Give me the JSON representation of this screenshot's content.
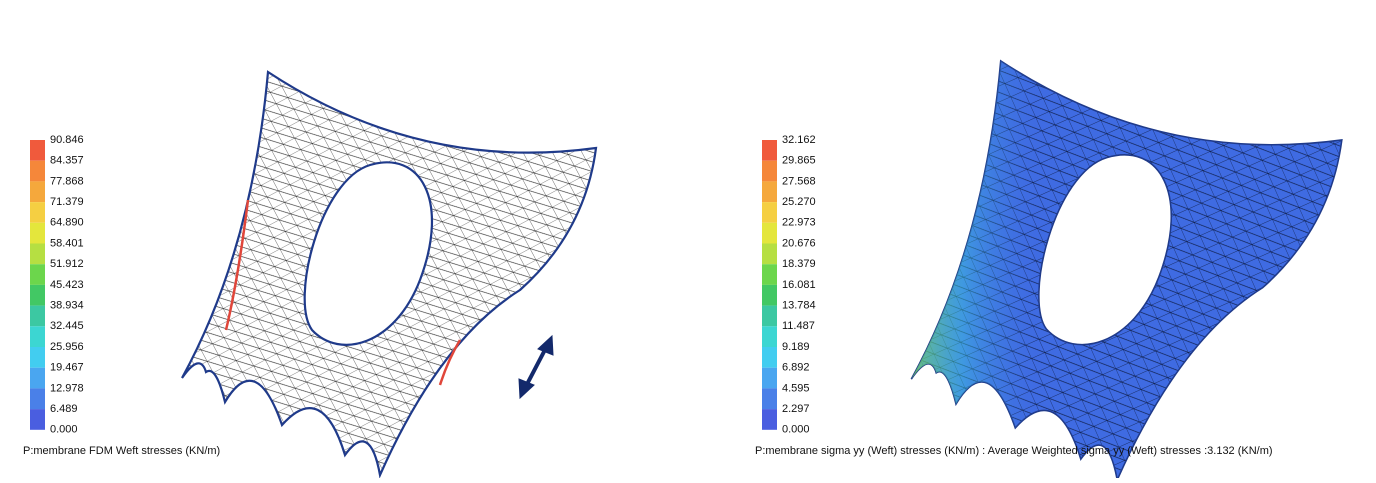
{
  "panels": [
    {
      "legend": [
        "90.846",
        "84.357",
        "77.868",
        "71.379",
        "64.890",
        "58.401",
        "51.912",
        "45.423",
        "38.934",
        "32.445",
        "25.956",
        "19.467",
        "12.978",
        "6.489",
        "0.000"
      ],
      "caption": "P:membrane FDM Weft stresses (KN/m)"
    },
    {
      "legend": [
        "32.162",
        "29.865",
        "27.568",
        "25.270",
        "22.973",
        "20.676",
        "18.379",
        "16.081",
        "13.784",
        "11.487",
        "9.189",
        "6.892",
        "4.595",
        "2.297",
        "0.000"
      ],
      "caption": "P:membrane sigma yy (Weft) stresses (KN/m) : Average Weighted sigma yy (Weft) stresses :3.132 (KN/m)"
    }
  ]
}
